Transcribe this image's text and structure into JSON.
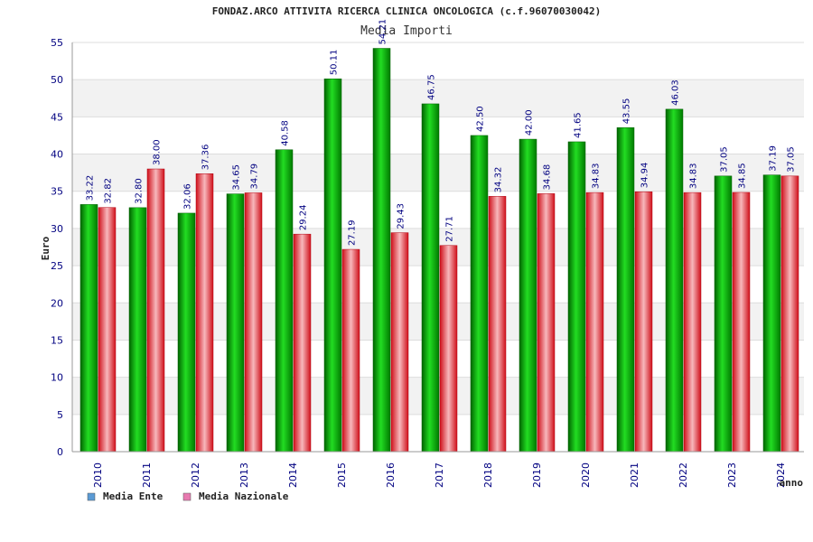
{
  "chart_data": {
    "type": "bar",
    "title": "FONDAZ.ARCO ATTIVITA RICERCA CLINICA ONCOLOGICA (c.f.96070030042)",
    "subtitle": "Media Importi",
    "xlabel": "anno",
    "ylabel": "Euro",
    "ylim": [
      0,
      55
    ],
    "yticks": [
      0,
      5,
      10,
      15,
      20,
      25,
      30,
      35,
      40,
      45,
      50,
      55
    ],
    "grid": true,
    "legend_position": "bottom-left",
    "categories": [
      "2010",
      "2011",
      "2012",
      "2013",
      "2014",
      "2015",
      "2016",
      "2017",
      "2018",
      "2019",
      "2020",
      "2021",
      "2022",
      "2023",
      "2024"
    ],
    "series": [
      {
        "name": "Media Ente",
        "color": "#00a800",
        "legend_color": "#5b9bd5",
        "values": [
          33.22,
          32.8,
          32.06,
          34.65,
          40.58,
          50.11,
          54.21,
          46.75,
          42.5,
          42.0,
          41.65,
          43.55,
          46.03,
          37.05,
          37.19
        ],
        "labels": [
          "33.22",
          "32.80",
          "32.06",
          "34.65",
          "40.58",
          "50.11",
          "54.21",
          "46.75",
          "42.50",
          "42.00",
          "41.65",
          "43.55",
          "46.03",
          "37.05",
          "37.19"
        ]
      },
      {
        "name": "Media Nazionale",
        "color": "#e8202a",
        "legend_color": "#e87ab0",
        "values": [
          32.82,
          38.0,
          37.36,
          34.79,
          29.24,
          27.19,
          29.43,
          27.71,
          34.32,
          34.68,
          34.83,
          34.94,
          34.83,
          34.85,
          37.05
        ],
        "labels": [
          "32.82",
          "38.00",
          "37.36",
          "34.79",
          "29.24",
          "27.19",
          "29.43",
          "27.71",
          "34.32",
          "34.68",
          "34.83",
          "34.94",
          "34.83",
          "34.85",
          "37.05"
        ]
      }
    ]
  }
}
